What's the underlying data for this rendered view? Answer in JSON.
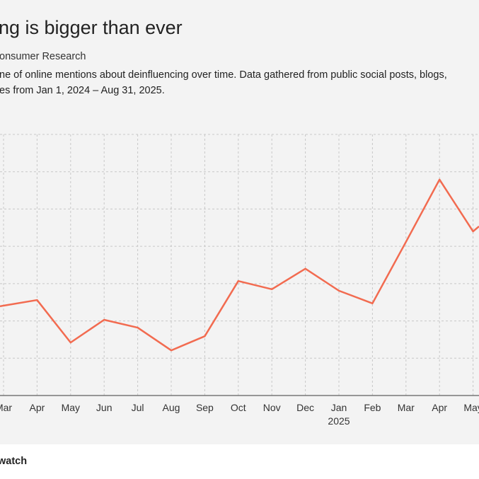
{
  "header": {
    "title": "ng is bigger than ever",
    "source": "onsumer Research",
    "description_line1": "ne of online mentions about deinfluencing over time. Data gathered from public social posts, blogs,",
    "description_line2": "es from Jan 1, 2024 – Aug 31, 2025."
  },
  "footer": {
    "brand": "watch"
  },
  "colors": {
    "line": "#f26b50",
    "background": "#f3f3f3",
    "grid": "#c8c8c8"
  },
  "chart_data": {
    "type": "line",
    "title": "ng is bigger than ever",
    "xlabel": "",
    "ylabel": "",
    "categories": [
      "Mar",
      "Apr",
      "May",
      "Jun",
      "Jul",
      "Aug",
      "Sep",
      "Oct",
      "Nov",
      "Dec",
      "Jan",
      "Feb",
      "Mar",
      "Apr",
      "May"
    ],
    "year_labels": {
      "10": "2025"
    },
    "series": [
      {
        "name": "Online mentions",
        "values": [
          2.41,
          2.56,
          1.42,
          2.03,
          1.82,
          1.21,
          1.59,
          3.07,
          2.85,
          3.4,
          2.81,
          2.47,
          4.12,
          5.79,
          4.4
        ]
      }
    ],
    "ylim": [
      0,
      7
    ],
    "grid": true,
    "y_tick_labels_visible": false
  }
}
